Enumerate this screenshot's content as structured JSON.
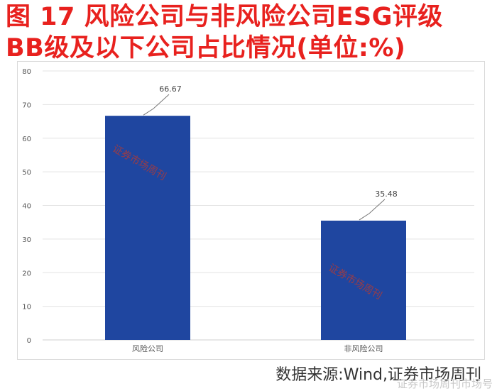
{
  "title": {
    "line1": "图 17  风险公司与非风险公司ESG评级",
    "line2": "BB级及以下公司占比情况(单位:%)"
  },
  "source": "数据来源:Wind,证券市场周刊",
  "footer_mark": "证券市场周刊市场号",
  "watermark": "证券市场周刊",
  "colors": {
    "title": "#e8211e",
    "bar": "#1f46a0",
    "grid": "#e3e3e3",
    "axis_text": "#555555"
  },
  "chart_data": {
    "type": "bar",
    "categories": [
      "风险公司",
      "非风险公司"
    ],
    "values": [
      66.67,
      35.48
    ],
    "data_labels": [
      "66.67",
      "35.48"
    ],
    "ylim": [
      0,
      80
    ],
    "yticks": [
      0,
      10,
      20,
      30,
      40,
      50,
      60,
      70,
      80
    ],
    "grid": true,
    "xlabel": "",
    "ylabel": ""
  }
}
